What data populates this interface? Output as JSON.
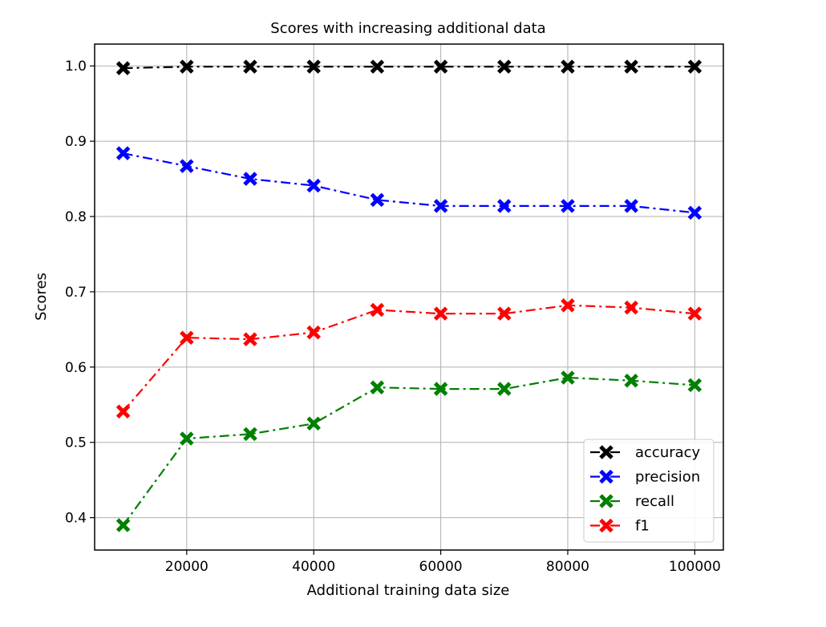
{
  "chart_data": {
    "type": "line",
    "title": "Scores with increasing additional data",
    "xlabel": "Additional training data size",
    "ylabel": "Scores",
    "x": [
      10000,
      20000,
      30000,
      40000,
      50000,
      60000,
      70000,
      80000,
      90000,
      100000
    ],
    "xlim": [
      5500,
      104500
    ],
    "ylim": [
      0.357,
      1.029
    ],
    "xticks": [
      20000,
      40000,
      60000,
      80000,
      100000
    ],
    "xtick_labels": [
      "20000",
      "40000",
      "60000",
      "80000",
      "100000"
    ],
    "yticks": [
      0.4,
      0.5,
      0.6,
      0.7,
      0.8,
      0.9,
      1.0
    ],
    "ytick_labels": [
      "0.4",
      "0.5",
      "0.6",
      "0.7",
      "0.8",
      "0.9",
      "1.0"
    ],
    "grid": true,
    "legend_position": "lower-right",
    "series": [
      {
        "name": "accuracy",
        "color": "#000000",
        "marker": "X",
        "linestyle": "dash-dot",
        "values": [
          0.997,
          0.999,
          0.999,
          0.999,
          0.999,
          0.999,
          0.999,
          0.999,
          0.999,
          0.999
        ]
      },
      {
        "name": "precision",
        "color": "#0000ff",
        "marker": "X",
        "linestyle": "dash-dot",
        "values": [
          0.884,
          0.867,
          0.85,
          0.841,
          0.822,
          0.814,
          0.814,
          0.814,
          0.814,
          0.805
        ]
      },
      {
        "name": "recall",
        "color": "#008000",
        "marker": "X",
        "linestyle": "dash-dot",
        "values": [
          0.39,
          0.505,
          0.511,
          0.525,
          0.573,
          0.571,
          0.571,
          0.586,
          0.582,
          0.576
        ]
      },
      {
        "name": "f1",
        "color": "#ff0000",
        "marker": "X",
        "linestyle": "dash-dot",
        "values": [
          0.541,
          0.639,
          0.637,
          0.646,
          0.676,
          0.671,
          0.671,
          0.682,
          0.679,
          0.671
        ]
      }
    ]
  }
}
